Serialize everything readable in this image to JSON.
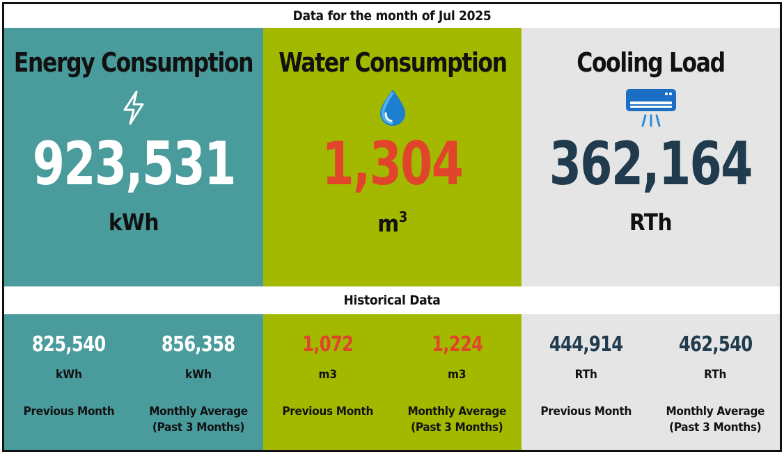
{
  "header": {
    "title": "Data for the month of Jul 2025"
  },
  "colors": {
    "energy_bg": "#4a9b9b",
    "water_bg": "#a3b900",
    "cooling_bg": "#e5e5e5",
    "energy_value": "#ffffff",
    "water_value": "#e0452c",
    "cooling_value": "#1f3b4d"
  },
  "energy": {
    "title": "Energy Consumption",
    "icon": "lightning-bolt-icon",
    "value": "923,531",
    "unit": "kWh"
  },
  "water": {
    "title": "Water Consumption",
    "icon": "water-drop-icon",
    "value": "1,304",
    "unit": "m",
    "unit_sup": "3"
  },
  "cooling": {
    "title": "Cooling Load",
    "icon": "air-conditioner-icon",
    "value": "362,164",
    "unit": "RTh"
  },
  "historical": {
    "title": "Historical Data",
    "energy": {
      "previous": {
        "value": "825,540",
        "unit": "kWh",
        "label": "Previous Month"
      },
      "average": {
        "value": "856,358",
        "unit": "kWh",
        "label_line1": "Monthly Average",
        "label_line2": "(Past 3 Months)"
      }
    },
    "water": {
      "previous": {
        "value": "1,072",
        "unit": "m3",
        "label": "Previous Month"
      },
      "average": {
        "value": "1,224",
        "unit": "m3",
        "label_line1": "Monthly Average",
        "label_line2": "(Past 3 Months)"
      }
    },
    "cooling": {
      "previous": {
        "value": "444,914",
        "unit": "RTh",
        "label": "Previous Month"
      },
      "average": {
        "value": "462,540",
        "unit": "RTh",
        "label_line1": "Monthly Average",
        "label_line2": "(Past 3 Months)"
      }
    }
  }
}
